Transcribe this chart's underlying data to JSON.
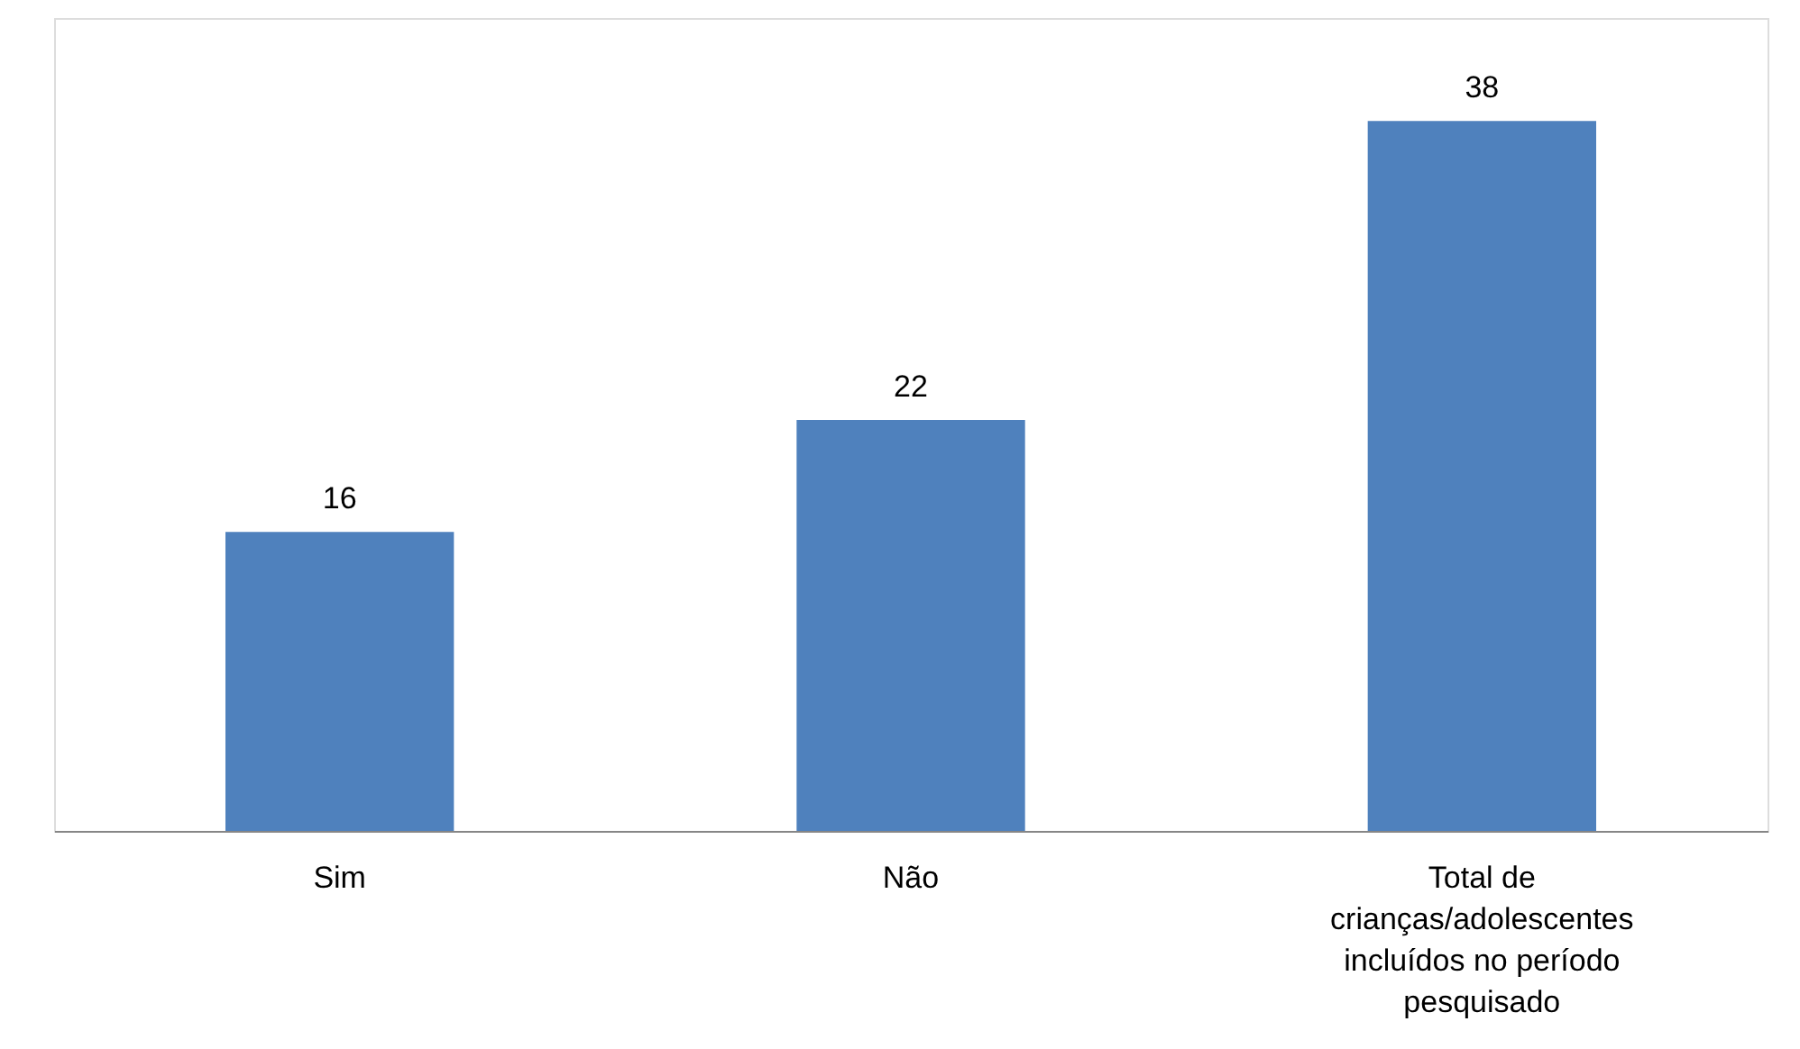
{
  "chart_data": {
    "type": "bar",
    "categories": [
      "Sim",
      "Não",
      "Total de crianças/adolescentes incluídos no período pesquisado"
    ],
    "values": [
      16,
      22,
      38
    ],
    "color": "#4f81bd",
    "data_labels": true
  }
}
